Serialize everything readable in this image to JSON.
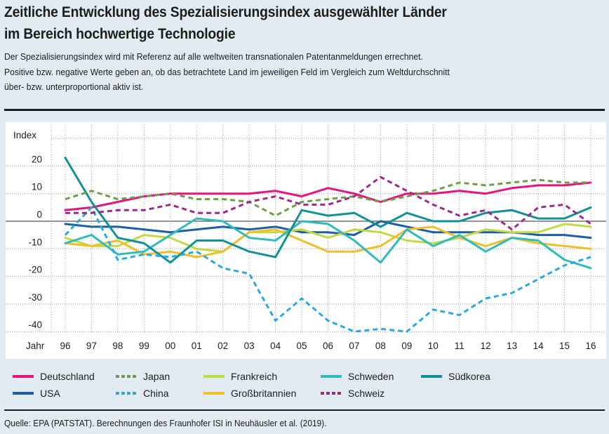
{
  "header": {
    "title_line1": "Zeitliche Entwicklung des Spezialisierungsindex ausgewählter Länder",
    "title_line2": "im Bereich hochwertige Technologie",
    "subtitle_line1": "Der Spezialisierungsindex wird mit Referenz auf alle weltweiten transnationalen Patentanmeldungen errechnet.",
    "subtitle_line2": "Positive bzw. negative Werte geben an, ob das betrachtete Land im jeweiligen Feld im Vergleich zum Weltdurchschnitt",
    "subtitle_line3": "über- bzw. unterproportional aktiv ist."
  },
  "footer": {
    "source": "Quelle: EPA (PATSTAT). Berechnungen des Fraunhofer ISI in Neuhäusler et al. (2019)."
  },
  "chart_data": {
    "type": "line",
    "title": "Zeitliche Entwicklung des Spezialisierungsindex ausgewählter Länder im Bereich hochwertige Technologie",
    "xlabel": "Jahr",
    "ylabel": "Index",
    "x": [
      "96",
      "97",
      "98",
      "99",
      "00",
      "01",
      "02",
      "03",
      "04",
      "05",
      "06",
      "07",
      "08",
      "09",
      "10",
      "11",
      "12",
      "13",
      "14",
      "15",
      "16"
    ],
    "yticks": [
      20,
      10,
      0,
      -10,
      -20,
      -30,
      -40
    ],
    "ylim": [
      -40,
      30
    ],
    "grid": true,
    "legend_position": "bottom",
    "series": [
      {
        "name": "Deutschland",
        "color": "#e5157f",
        "dash": false,
        "values": [
          4,
          5,
          7,
          9,
          10,
          10,
          10,
          10,
          11,
          9,
          12,
          10,
          7,
          10,
          10,
          11,
          10,
          12,
          13,
          13,
          14
        ]
      },
      {
        "name": "USA",
        "color": "#1d5fa6",
        "dash": false,
        "values": [
          -1,
          -2,
          -2,
          -3,
          -4,
          -3,
          -2,
          -3,
          -2,
          -4,
          -4,
          -5,
          0,
          -2,
          -4,
          -4,
          -4,
          -4,
          -5,
          -5,
          -6
        ]
      },
      {
        "name": "Japan",
        "color": "#6d9e45",
        "dash": true,
        "values": [
          8,
          11,
          8,
          9,
          10,
          8,
          8,
          7,
          2,
          7,
          8,
          9,
          7,
          9,
          11,
          14,
          13,
          14,
          15,
          14,
          14
        ]
      },
      {
        "name": "China",
        "color": "#27aae1",
        "dash": true,
        "values": [
          -5,
          5,
          -14,
          -12,
          -13,
          -11,
          -17,
          -19,
          -36,
          -28,
          -36,
          -40,
          -39,
          -40,
          -32,
          -34,
          -28,
          -26,
          -21,
          -16,
          -13
        ]
      },
      {
        "name": "Frankreich",
        "color": "#c3d944",
        "dash": false,
        "values": [
          -6,
          -9,
          -9,
          -5,
          -6,
          -10,
          -11,
          -4,
          -4,
          -3,
          -6,
          -3,
          -4,
          -7,
          -8,
          -6,
          -3,
          -4,
          -4,
          -1,
          -2
        ]
      },
      {
        "name": "Großbritannien",
        "color": "#eebf2a",
        "dash": false,
        "values": [
          -8,
          -9,
          -7,
          -12,
          -11,
          -13,
          -11,
          -4,
          -3,
          -7,
          -11,
          -11,
          -9,
          -3,
          -2,
          -6,
          -9,
          -6,
          -8,
          -9,
          -10
        ]
      },
      {
        "name": "Schweden",
        "color": "#2fbcbb",
        "dash": false,
        "values": [
          -8,
          -5,
          -12,
          -11,
          -5,
          1,
          0,
          -6,
          -7,
          0,
          -1,
          -7,
          -15,
          -3,
          -9,
          -5,
          -11,
          -6,
          -7,
          -14,
          -17
        ]
      },
      {
        "name": "Schweiz",
        "color": "#9c2a8c",
        "dash": true,
        "values": [
          3,
          3,
          4,
          4,
          6,
          3,
          3,
          7,
          9,
          6,
          6,
          9,
          16,
          11,
          6,
          2,
          4,
          -3,
          5,
          6,
          -1
        ]
      },
      {
        "name": "Südkorea",
        "color": "#139096",
        "dash": false,
        "values": [
          23,
          7,
          -6,
          -8,
          -15,
          -7,
          -7,
          -11,
          -13,
          4,
          2,
          3,
          -2,
          3,
          0,
          0,
          3,
          4,
          1,
          1,
          5
        ]
      }
    ]
  },
  "legend": {
    "items": [
      {
        "label": "Deutschland",
        "color": "#e5157f",
        "dash": false
      },
      {
        "label": "Japan",
        "color": "#6d9e45",
        "dash": true
      },
      {
        "label": "Frankreich",
        "color": "#c3d944",
        "dash": false
      },
      {
        "label": "Schweden",
        "color": "#2fbcbb",
        "dash": false
      },
      {
        "label": "Südkorea",
        "color": "#139096",
        "dash": false
      },
      {
        "label": "USA",
        "color": "#1d5fa6",
        "dash": false
      },
      {
        "label": "China",
        "color": "#27aae1",
        "dash": true
      },
      {
        "label": "Großbritannien",
        "color": "#eebf2a",
        "dash": false
      },
      {
        "label": "Schweiz",
        "color": "#9c2a8c",
        "dash": true
      }
    ]
  }
}
